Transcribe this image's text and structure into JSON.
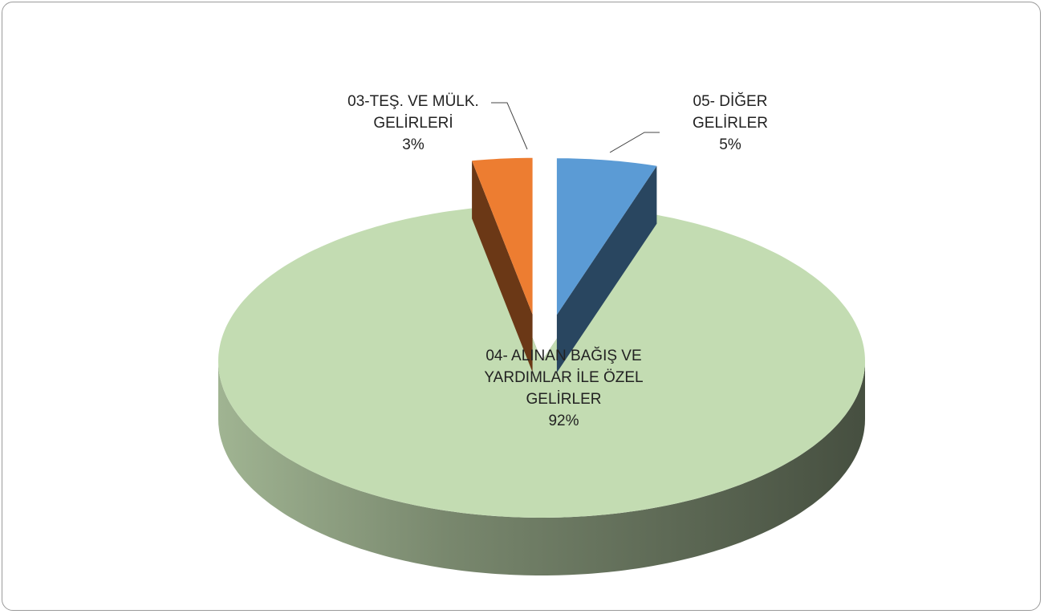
{
  "chart_data": {
    "type": "pie3d",
    "categories": [
      "03-TEŞ. VE MÜLK. GELİRLERİ",
      "04- ALINAN BAĞIŞ VE YARDIMLAR İLE ÖZEL GELİRLER",
      "05- DİĞER GELİRLER"
    ],
    "values": [
      3,
      92,
      5
    ],
    "value_labels": [
      "3%",
      "92%",
      "5%"
    ],
    "colors": [
      "#ed7d31",
      "#c3dcb2",
      "#5b9bd5"
    ]
  }
}
